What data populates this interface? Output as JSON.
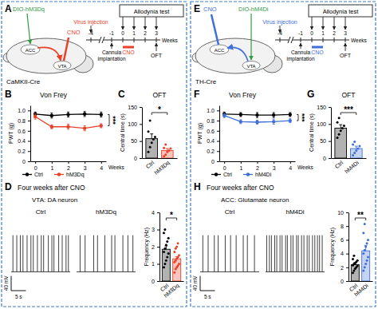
{
  "panels": [
    {
      "label": "A",
      "virus": "DIO-hM3Dq",
      "drug": "CNO",
      "regions": [
        "ACC",
        "VTA"
      ],
      "mouse": "CaMKII-Cre",
      "color": "#e8412a",
      "virus_color": "#2f9b3f",
      "timeline": {
        "injection": "Virus injection",
        "test": "Allodynia test",
        "ticks": [
          -4,
          -1,
          0,
          1,
          2,
          3
        ],
        "unit": "Weeks",
        "cannula": [
          "Cannula",
          "implantation"
        ],
        "drug": "CNO",
        "oft": "OFT"
      }
    },
    {
      "label": "E",
      "virus": "DIO-hM4Di",
      "drug": "CNO",
      "regions": [
        "ACC",
        "VTA"
      ],
      "mouse": "TH-Cre",
      "color": "#3f6fd9",
      "virus_color": "#2f9b3f",
      "timeline": {
        "injection": "Virus injection",
        "test": "Allodynia test",
        "ticks": [
          -4,
          -1,
          0,
          1,
          2,
          3
        ],
        "unit": "Weeks",
        "cannula": [
          "Cannula",
          "implantation"
        ],
        "drug": "CNO",
        "oft": "OFT"
      }
    }
  ],
  "chart_data": [
    {
      "panel": "B",
      "type": "line",
      "title": "Von Frey",
      "xlabel": "Weeks",
      "ylabel": "PWT (g)",
      "x": [
        0,
        1,
        2,
        3,
        4
      ],
      "xlim": [
        -0.3,
        4.3
      ],
      "xticks": [
        0,
        1,
        2,
        3,
        4
      ],
      "ylim": [
        0,
        1.1
      ],
      "yticks": [
        0,
        0.2,
        0.4,
        0.6,
        0.8,
        {
          "value": 1,
          "label": "1.0"
        }
      ],
      "legend": "bottom",
      "annotation": "***",
      "series": [
        {
          "name": "Ctrl",
          "color": "#000000",
          "marker": "circle",
          "values": [
            0.93,
            0.9,
            0.92,
            0.93,
            0.92
          ],
          "errors": [
            0.04,
            0.05,
            0.05,
            0.05,
            0.05
          ]
        },
        {
          "name": "hM3Dq",
          "color": "#e8412a",
          "marker": "circle",
          "values": [
            0.88,
            0.68,
            0.68,
            0.65,
            0.7
          ],
          "errors": [
            0.05,
            0.04,
            0.05,
            0.05,
            0.04
          ]
        }
      ]
    },
    {
      "panel": "C",
      "type": "bar",
      "title": "OFT",
      "ylabel": "Central time (s)",
      "categories": [
        "Ctrl",
        "hM3Dq"
      ],
      "values": [
        57,
        22
      ],
      "errors": [
        14,
        6
      ],
      "points": [
        [
          18,
          32,
          45,
          55,
          62,
          78,
          110
        ],
        [
          5,
          10,
          18,
          22,
          28,
          30,
          40
        ]
      ],
      "colors": [
        "#000000",
        "#e8412a"
      ],
      "ylim": [
        0,
        150
      ],
      "yticks": [
        0,
        50,
        100,
        150
      ],
      "annotation": "*"
    },
    {
      "type": "bar",
      "ylabel": "Frequency (Hz)",
      "categories": [
        "Ctrl",
        "hM3Dq"
      ],
      "values": [
        1.85,
        1.3
      ],
      "errors": [
        0.2,
        0.12
      ],
      "points": [
        [
          0.8,
          1.0,
          1.2,
          1.4,
          1.6,
          1.7,
          1.9,
          2.1,
          2.3,
          2.5,
          2.8,
          3.0
        ],
        [
          0.5,
          0.7,
          0.8,
          0.9,
          1.0,
          1.1,
          1.2,
          1.3,
          1.4,
          1.5,
          1.7,
          1.9,
          2.0,
          2.2
        ]
      ],
      "colors": [
        "#000000",
        "#e8412a"
      ],
      "ylim": [
        0,
        4
      ],
      "yticks": [
        0,
        1,
        2,
        3,
        4
      ],
      "annotation": "*"
    },
    {
      "panel": "F",
      "type": "line",
      "title": "Von Frey",
      "xlabel": "Weeks",
      "ylabel": "PWT (g)",
      "x": [
        0,
        1,
        2,
        3,
        4
      ],
      "xlim": [
        -0.3,
        4.3
      ],
      "xticks": [
        0,
        1,
        2,
        3,
        4
      ],
      "ylim": [
        0,
        1.1
      ],
      "yticks": [
        0,
        0.2,
        0.4,
        0.6,
        0.8,
        {
          "value": 1,
          "label": "1.0"
        }
      ],
      "legend": "bottom",
      "annotation": "***",
      "series": [
        {
          "name": "Ctrl",
          "color": "#000000",
          "marker": "circle",
          "values": [
            0.93,
            0.92,
            0.91,
            0.91,
            0.92
          ],
          "errors": [
            0.04,
            0.04,
            0.05,
            0.05,
            0.04
          ]
        },
        {
          "name": "hM4Di",
          "color": "#3f6fd9",
          "marker": "circle",
          "values": [
            0.9,
            0.78,
            0.77,
            0.78,
            0.8
          ],
          "errors": [
            0.04,
            0.04,
            0.04,
            0.05,
            0.04
          ]
        }
      ]
    },
    {
      "panel": "G",
      "type": "bar",
      "title": "OFT",
      "ylabel": "Central time (s)",
      "categories": [
        "Ctrl",
        "hM4Di"
      ],
      "values": [
        88,
        28
      ],
      "errors": [
        10,
        7
      ],
      "points": [
        [
          60,
          70,
          80,
          88,
          95,
          105,
          118
        ],
        [
          8,
          15,
          22,
          28,
          35,
          40,
          48
        ]
      ],
      "colors": [
        "#000000",
        "#3f6fd9"
      ],
      "ylim": [
        0,
        150
      ],
      "yticks": [
        0,
        50,
        100,
        150
      ],
      "annotation": "***"
    },
    {
      "type": "bar",
      "ylabel": "Frequency (Hz)",
      "categories": [
        "Ctrl",
        "hM4Di"
      ],
      "values": [
        2.4,
        4.4
      ],
      "errors": [
        0.3,
        0.8
      ],
      "points": [
        [
          1.2,
          1.5,
          1.8,
          2.0,
          2.2,
          2.3,
          2.5,
          2.6,
          2.8,
          3.0,
          3.2,
          3.7
        ],
        [
          1.5,
          2.0,
          2.5,
          3.0,
          3.5,
          4.0,
          4.5,
          5.0,
          5.5,
          6.0,
          7.0,
          8.3
        ]
      ],
      "colors": [
        "#000000",
        "#3f6fd9"
      ],
      "ylim": [
        0,
        10
      ],
      "yticks": [
        0,
        2,
        4,
        6,
        8,
        10
      ],
      "annotation": "**"
    }
  ],
  "recordings": [
    {
      "label": "D",
      "title": "Four weeks after CNO",
      "subtitle": "VTA: DA neuron",
      "groups": [
        "Ctrl",
        "hM3Dq"
      ],
      "xlim": [
        0,
        20
      ],
      "ylim": [
        -70,
        50
      ],
      "baseline": -60,
      "peak": 40,
      "scale_time": {
        "value": 5,
        "label": "5 s"
      },
      "scale_voltage": {
        "value": 40,
        "label": "40 mV"
      },
      "spikes": [
        [
          0.6,
          1.9,
          3.1,
          4.0,
          5.4,
          6.7,
          7.5,
          8.9,
          10.2,
          11.0,
          12.6,
          13.8,
          14.5,
          16.1,
          17.3,
          18.6,
          19.4
        ],
        [
          1.2,
          2.9,
          5.8,
          7.1,
          9.6,
          11.9,
          13.0,
          15.7,
          17.4,
          19.1
        ]
      ]
    },
    {
      "label": "H",
      "title": "Four weeks after CNO",
      "subtitle": "ACC: Glutamate neuron",
      "groups": [
        "Ctrl",
        "hM4Di"
      ],
      "xlim": [
        0,
        20
      ],
      "ylim": [
        -70,
        50
      ],
      "baseline": -60,
      "peak": 40,
      "scale_time": {
        "value": 5,
        "label": "5 s"
      },
      "scale_voltage": {
        "value": 40,
        "label": "40 mV"
      },
      "spikes": [
        [
          0.9,
          2.7,
          4.8,
          6.1,
          8.5,
          10.3,
          12.2,
          14.6,
          16.0,
          18.4
        ],
        [
          0.4,
          1.3,
          2.0,
          3.1,
          3.8,
          4.9,
          5.6,
          6.8,
          7.4,
          8.6,
          9.3,
          10.5,
          11.1,
          12.2,
          13.0,
          14.1,
          14.8,
          15.9,
          16.7,
          17.6,
          18.3,
          19.2
        ]
      ]
    }
  ]
}
